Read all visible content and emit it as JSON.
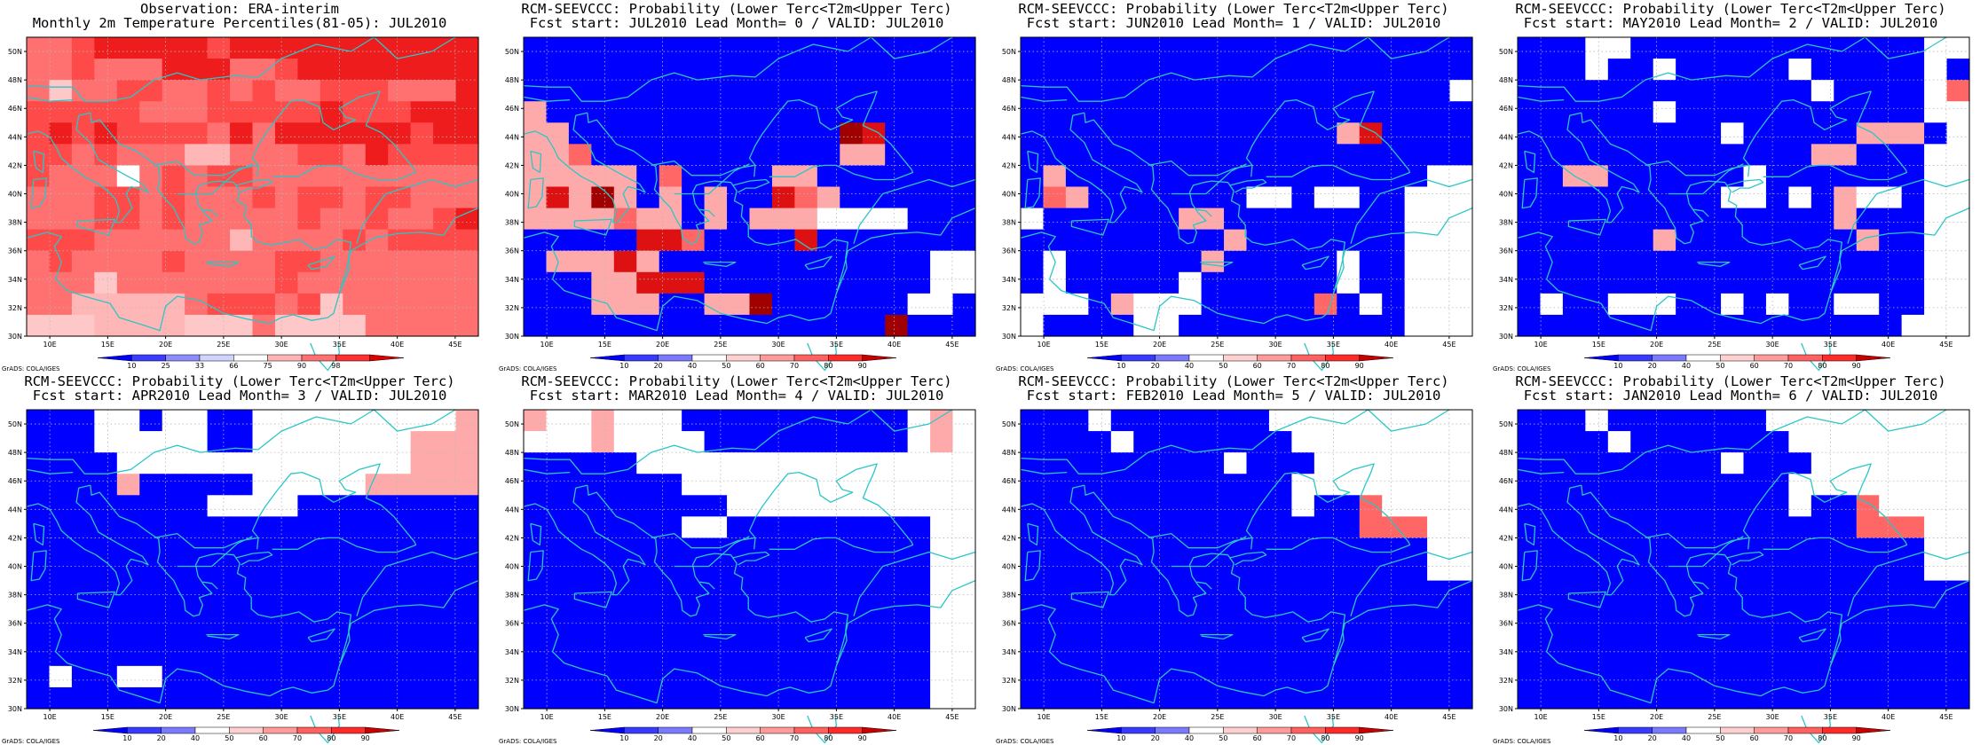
{
  "panels": [
    {
      "title1": "Observation: ERA-interim",
      "title2": "Monthly 2m Temperature Percentiles(81-05): JUL2010",
      "scale": "obs",
      "grid": [
        "44566666566666666666",
        "44544466644566666666",
        "43445544545445554446",
        "55555444555556555666",
        "56565555464666666566",
        "55454442244455465555",
        "54440454554444444444",
        "44455454445455455444",
        "44455454444454454456",
        "55544444424444545555",
        "45444454444554444444",
        "44434444444544444444",
        "44222224555453444444",
        "33322223334333344444"
      ]
    },
    {
      "title1": "RCM-SEEVCCC: Probability (Lower Terc<T2m<Upper Terc)",
      "title2": "Fcst start: JUL2010  Lead Month= 0 / VALID: JUL2010",
      "scale": "prob",
      "grid": [
        "11111111111111111111",
        "11111111111111111111",
        "11111111111111111111",
        "31111111111111111111",
        "33111111111111651111",
        "33411111111111331111",
        "33333141111331111111",
        "35363131311543111111",
        "33334331313330000111",
        "11111554111151111111",
        "13335311111111111100",
        "11133555111111111100",
        "11133311336111111001",
        "11111111111111116111"
      ]
    },
    {
      "title1": "RCM-SEEVCCC: Probability (Lower Terc<T2m<Upper Terc)",
      "title2": "Fcst start: JUN2010  Lead Month= 1 / VALID: JUL2010",
      "scale": "prob",
      "grid": [
        "11111111111111111111",
        "11111111111111111111",
        "11111111111111111110",
        "11111111111111111111",
        "11111111111111351111",
        "11111111111111111111",
        "13111111111111111100",
        "14311111110010011000",
        "01111113311111111000",
        "11111111131111111000",
        "10111111311111011000",
        "10111110111111011000",
        "00013000111114101000",
        "01111001111111111000"
      ]
    },
    {
      "title1": "RCM-SEEVCCC: Probability (Lower Terc<T2m<Upper Terc)",
      "title2": "Fcst start: MAY2010  Lead Month= 2 / VALID: JUL2010",
      "scale": "prob",
      "grid": [
        "11100111111111111100",
        "11101101111101111101",
        "11111111111110111104",
        "11111101111111111100",
        "11111111101111133310",
        "11111111111113311100",
        "11331111110111111100",
        "11111111100101300100",
        "11111111111111311100",
        "11111131111111131100",
        "11111111111111111100",
        "11111111111111111100",
        "10110001101011001100",
        "11111111111111111000"
      ]
    },
    {
      "title1": "RCM-SEEVCCC: Probability (Lower Terc<T2m<Upper Terc)",
      "title2": "Fcst start: APR2010  Lead Month= 3 / VALID: JUL2010",
      "scale": "prob",
      "grid": [
        "11100100110000000003",
        "11100000110000000333",
        "11110000000000000333",
        "11113111110000033333",
        "11111111000011111111",
        "11111111111111111111",
        "11111111111111111111",
        "11111111111111111111",
        "11111111111111111111",
        "11111111111111111111",
        "11111111111111111111",
        "11111111111111111111",
        "10110011111111111111",
        "11111111111111111111"
      ]
    },
    {
      "title1": "RCM-SEEVCCC: Probability (Lower Terc<T2m<Upper Terc)",
      "title2": "Fcst start: MAR2010  Lead Month= 4 / VALID: JUL2010",
      "scale": "prob",
      "grid": [
        "30030001111111111030",
        "00030000111111111030",
        "11111000000000000000",
        "11111110000000000000",
        "11111111100000000000",
        "11111110011111111100",
        "11111111111111111100",
        "11111111111111111100",
        "11111111111111111100",
        "11111111111111111100",
        "11111111111111111100",
        "11111111111111111100",
        "11111111111111111100",
        "11111111111111111100"
      ]
    },
    {
      "title1": "RCM-SEEVCCC: Probability (Lower Terc<T2m<Upper Terc)",
      "title2": "Fcst start: FEB2010  Lead Month= 5 / VALID: JUL2010",
      "scale": "prob",
      "grid": [
        "11101111111000000000",
        "11110111111100000000",
        "11111111101110000000",
        "11111111111100000000",
        "11111111111101140000",
        "11111111111111144400",
        "11111111111111111100",
        "11111111111111111100",
        "11111111111111111111",
        "11111111111111111111",
        "11111111111111111111",
        "11111111111111111111",
        "11111111111111111111",
        "11111111111111111111"
      ]
    },
    {
      "title1": "RCM-SEEVCCC: Probability (Lower Terc<T2m<Upper Terc)",
      "title2": "Fcst start: JAN2010  Lead Month= 6 / VALID: JUL2010",
      "scale": "prob",
      "grid": [
        "11101111111000000000",
        "11110111111100000000",
        "11111111101110000000",
        "11111111111100000000",
        "11111111111101140000",
        "11111111111111144400",
        "11111111111111111100",
        "11111111111111111100",
        "11111111111111111111",
        "11111111111111111111",
        "11111111111111111111",
        "11111111111111111111",
        "11111111111111111111",
        "11111111111111111111"
      ]
    }
  ],
  "axes": {
    "y_labels": [
      "50N",
      "48N",
      "46N",
      "44N",
      "42N",
      "40N",
      "38N",
      "36N",
      "34N",
      "32N",
      "30N"
    ],
    "x_labels": [
      "10E",
      "15E",
      "20E",
      "25E",
      "30E",
      "35E",
      "40E",
      "45E"
    ],
    "lat_range": [
      30,
      51
    ],
    "lon_range": [
      8,
      47
    ]
  },
  "colorbars": {
    "obs": {
      "labels": [
        "10",
        "25",
        "33",
        "66",
        "75",
        "90",
        "98"
      ],
      "colors": [
        "#0000ff",
        "#3c3cff",
        "#8c8cff",
        "#d2d2ff",
        "#ffffff",
        "#ffb4b4",
        "#ff7070",
        "#ff3030",
        "#e00000"
      ]
    },
    "prob": {
      "labels": [
        "10",
        "20",
        "40",
        "50",
        "60",
        "70",
        "80",
        "90"
      ],
      "colors": [
        "#0000ff",
        "#3a3aff",
        "#7a7aff",
        "#ffffff",
        "#ffd0d0",
        "#ff9a9a",
        "#ff6060",
        "#ff2a2a",
        "#c80000"
      ]
    }
  },
  "cell_colors": {
    "obs": [
      "#ffffff",
      "#ff9e9e",
      "#ffb6b6",
      "#ffc8c8",
      "#ff7070",
      "#ff4a4a",
      "#ee1c1c"
    ],
    "prob": [
      "#ffffff",
      "#0000ff",
      "#4444ff",
      "#ffaaaa",
      "#ff6666",
      "#dd1111",
      "#a00000"
    ]
  },
  "credit": "GrADS: COLA/IGES",
  "colors": {
    "coast": "#2cc6c6",
    "grid_line": "#b8b8b8"
  }
}
